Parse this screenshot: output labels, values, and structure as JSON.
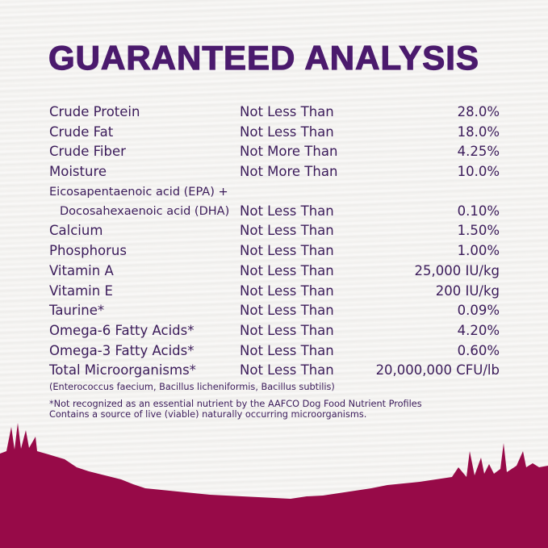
{
  "title": "GUARANTEED ANALYSIS",
  "rows": [
    {
      "name": "Crude Protein",
      "qualifier": "Not Less Than",
      "value": "28.0%"
    },
    {
      "name": "Crude Fat",
      "qualifier": "Not Less Than",
      "value": "18.0%"
    },
    {
      "name": "Crude Fiber",
      "qualifier": "Not More Than",
      "value": "4.25%"
    },
    {
      "name": "Moisture",
      "qualifier": "Not More Than",
      "value": "10.0%"
    },
    {
      "name_line1": "Eicosapentaenoic acid (EPA) +",
      "name": "Docosahexaenoic acid (DHA)",
      "qualifier": "Not Less Than",
      "value": "0.10%"
    },
    {
      "name": "Calcium",
      "qualifier": "Not Less Than",
      "value": "1.50%"
    },
    {
      "name": "Phosphorus",
      "qualifier": "Not Less Than",
      "value": "1.00%"
    },
    {
      "name": "Vitamin A",
      "qualifier": "Not Less Than",
      "value": "25,000 IU/kg"
    },
    {
      "name": "Vitamin E",
      "qualifier": "Not Less Than",
      "value": "200 IU/kg"
    },
    {
      "name": "Taurine*",
      "qualifier": "Not Less Than",
      "value": "0.09%"
    },
    {
      "name": "Omega-6 Fatty Acids*",
      "qualifier": "Not Less Than",
      "value": "4.20%"
    },
    {
      "name": "Omega-3 Fatty Acids*",
      "qualifier": "Not Less Than",
      "value": "0.60%"
    },
    {
      "name": "Total Microorganisms*",
      "qualifier": "Not Less Than",
      "value": "20,000,000 CFU/lb"
    }
  ],
  "microorganisms_note": "(Enterococcus faecium, Bacillus licheniformis, Bacillus subtilis)",
  "footnote_1": "*Not recognized as an essential nutrient by the AAFCO Dog Food Nutrient Profiles",
  "footnote_2": "Contains a source of live (viable) naturally occurring microorganisms.",
  "colors": {
    "title": "#4b1a6d",
    "text": "#3b1b5a",
    "ground": "#970a48"
  }
}
